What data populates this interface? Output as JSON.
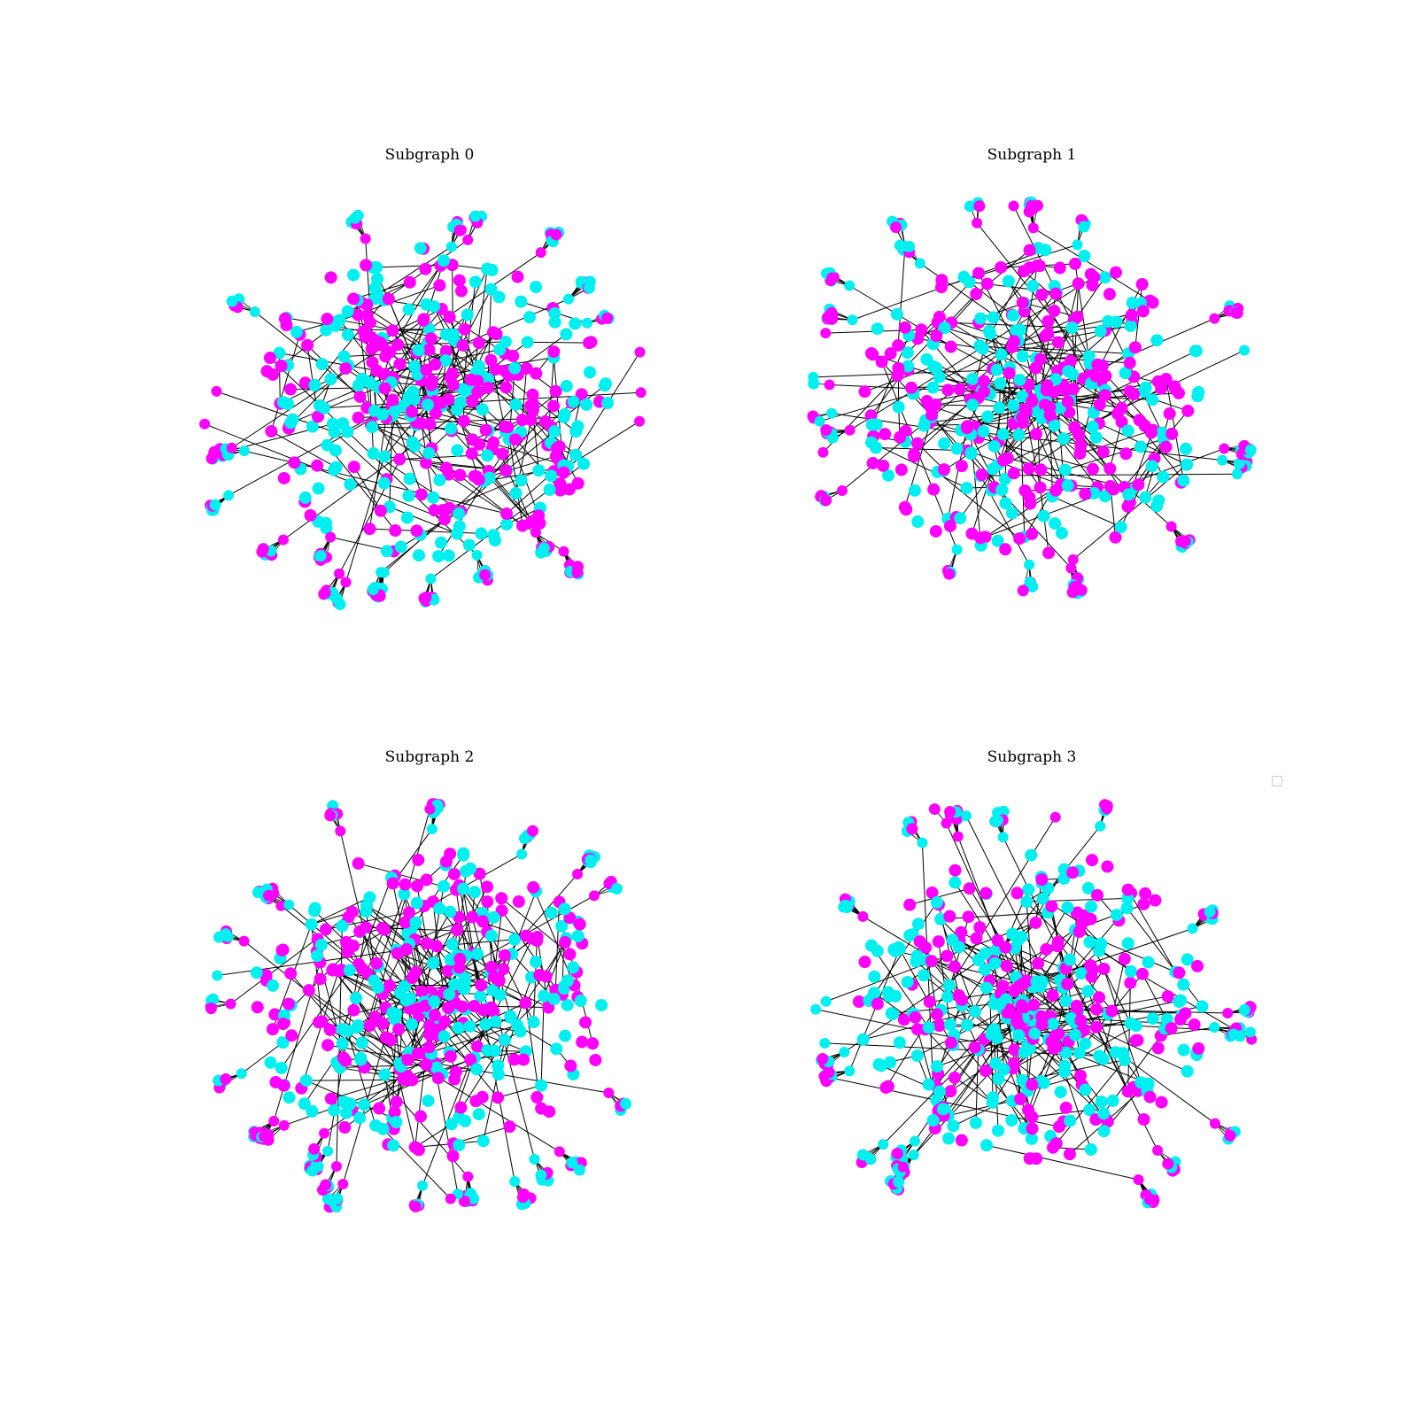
{
  "figure": {
    "panels": [
      {
        "title": "Subgraph 0"
      },
      {
        "title": "Subgraph 1"
      },
      {
        "title": "Subgraph 2"
      },
      {
        "title": "Subgraph 3"
      }
    ],
    "colors": {
      "node_a": "#ff00ff",
      "node_b": "#00f0f0",
      "edge": "#000000"
    },
    "legend": {
      "entries": []
    }
  }
}
